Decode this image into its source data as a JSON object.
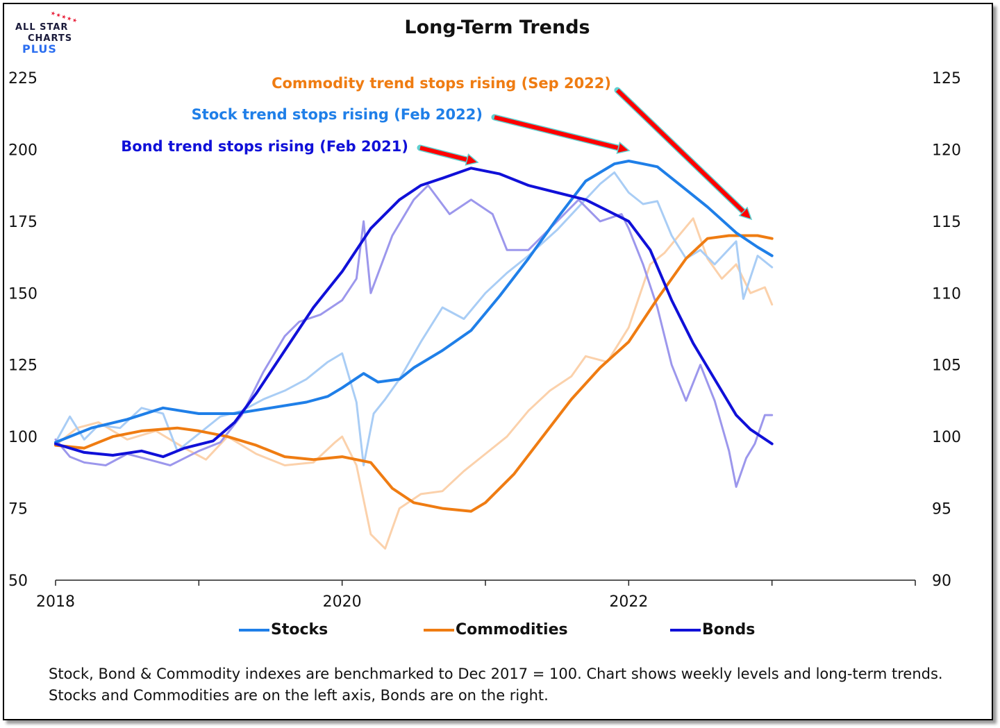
{
  "logo": {
    "line1": "ALL STAR",
    "line2": "CHARTS",
    "line3": "PLUS"
  },
  "colors": {
    "stocks": "#1f7fe8",
    "commodities": "#ef7c12",
    "bonds": "#1010d8",
    "stocks_weekly": "#a9cdf5",
    "commodities_weekly": "#fbd1ab",
    "bonds_weekly": "#9c97ec",
    "arrow": "#ff0000",
    "arrow_outline": "#5fd0d0"
  },
  "chart_data": {
    "type": "line",
    "title": "Long-Term Trends",
    "xlabel": "",
    "ylabel_left": "",
    "ylabel_right": "",
    "x_ticks": [
      "2018",
      "2020",
      "2022"
    ],
    "xlim": [
      2018.0,
      2024.0
    ],
    "ylim_left": [
      50,
      225
    ],
    "ylim_right": [
      90,
      125
    ],
    "y_ticks_left": [
      50,
      75,
      100,
      125,
      150,
      175,
      200,
      225
    ],
    "y_ticks_right": [
      90,
      95,
      100,
      105,
      110,
      115,
      120,
      125
    ],
    "grid": false,
    "legend_position": "bottom",
    "series": [
      {
        "name": "Stocks",
        "axis": "left",
        "kind": "trend",
        "x": [
          2018.0,
          2018.25,
          2018.5,
          2018.75,
          2019.0,
          2019.25,
          2019.5,
          2019.75,
          2019.9,
          2020.0,
          2020.15,
          2020.25,
          2020.4,
          2020.5,
          2020.7,
          2020.9,
          2021.1,
          2021.3,
          2021.5,
          2021.7,
          2021.9,
          2022.0,
          2022.1,
          2022.2,
          2022.4,
          2022.55,
          2022.75,
          2022.9,
          2023.0
        ],
        "y": [
          98,
          103,
          106,
          110,
          108,
          108,
          110,
          112,
          114,
          117,
          122,
          119,
          120,
          124,
          130,
          137,
          149,
          162,
          176,
          189,
          195,
          196,
          195,
          194,
          186,
          180,
          171,
          166,
          163
        ]
      },
      {
        "name": "",
        "axis": "left",
        "kind": "weekly",
        "x": [
          2018.0,
          2018.1,
          2018.2,
          2018.3,
          2018.45,
          2018.6,
          2018.75,
          2018.85,
          2019.0,
          2019.15,
          2019.3,
          2019.45,
          2019.6,
          2019.75,
          2019.9,
          2020.0,
          2020.1,
          2020.15,
          2020.22,
          2020.3,
          2020.4,
          2020.55,
          2020.7,
          2020.85,
          2021.0,
          2021.15,
          2021.3,
          2021.5,
          2021.65,
          2021.8,
          2021.9,
          2022.0,
          2022.1,
          2022.2,
          2022.3,
          2022.4,
          2022.5,
          2022.6,
          2022.75,
          2022.8,
          2022.9,
          2023.0
        ],
        "y": [
          98,
          107,
          99,
          104,
          103,
          110,
          108,
          95,
          101,
          107,
          109,
          113,
          116,
          120,
          126,
          129,
          112,
          90,
          108,
          113,
          120,
          133,
          145,
          141,
          150,
          157,
          163,
          172,
          180,
          188,
          192,
          185,
          181,
          182,
          170,
          162,
          165,
          160,
          168,
          148,
          163,
          159
        ]
      },
      {
        "name": "Commodities",
        "axis": "left",
        "kind": "trend",
        "x": [
          2018.0,
          2018.2,
          2018.4,
          2018.6,
          2018.85,
          2019.0,
          2019.2,
          2019.4,
          2019.6,
          2019.8,
          2020.0,
          2020.2,
          2020.35,
          2020.5,
          2020.7,
          2020.9,
          2021.0,
          2021.2,
          2021.4,
          2021.6,
          2021.8,
          2022.0,
          2022.2,
          2022.4,
          2022.55,
          2022.7,
          2022.8,
          2022.9,
          2023.0
        ],
        "y": [
          97,
          96,
          100,
          102,
          103,
          102,
          100,
          97,
          93,
          92,
          93,
          91,
          82,
          77,
          75,
          74,
          77,
          87,
          100,
          113,
          124,
          133,
          148,
          162,
          169,
          170,
          170,
          170,
          169
        ]
      },
      {
        "name": "",
        "axis": "left",
        "kind": "weekly",
        "x": [
          2018.0,
          2018.15,
          2018.3,
          2018.5,
          2018.7,
          2018.9,
          2019.05,
          2019.2,
          2019.4,
          2019.6,
          2019.8,
          2019.95,
          2020.0,
          2020.1,
          2020.2,
          2020.3,
          2020.4,
          2020.55,
          2020.7,
          2020.85,
          2021.0,
          2021.15,
          2021.3,
          2021.45,
          2021.6,
          2021.7,
          2021.85,
          2022.0,
          2022.15,
          2022.25,
          2022.35,
          2022.45,
          2022.55,
          2022.65,
          2022.75,
          2022.85,
          2022.95,
          2023.0
        ],
        "y": [
          97,
          103,
          105,
          99,
          102,
          96,
          92,
          100,
          94,
          90,
          91,
          98,
          100,
          90,
          66,
          61,
          75,
          80,
          81,
          88,
          94,
          100,
          109,
          116,
          121,
          128,
          126,
          138,
          160,
          164,
          170,
          176,
          162,
          155,
          160,
          150,
          152,
          146
        ]
      },
      {
        "name": "Bonds",
        "axis": "right",
        "kind": "trend",
        "x": [
          2018.0,
          2018.2,
          2018.4,
          2018.6,
          2018.75,
          2018.9,
          2019.1,
          2019.25,
          2019.4,
          2019.6,
          2019.8,
          2020.0,
          2020.2,
          2020.4,
          2020.55,
          2020.7,
          2020.9,
          2021.1,
          2021.3,
          2021.5,
          2021.7,
          2021.9,
          2022.0,
          2022.15,
          2022.3,
          2022.45,
          2022.6,
          2022.75,
          2022.85,
          2023.0
        ],
        "y": [
          99.5,
          98.9,
          98.7,
          99.0,
          98.6,
          99.2,
          99.7,
          101.0,
          103.0,
          106.0,
          109.0,
          111.5,
          114.5,
          116.5,
          117.5,
          118.0,
          118.7,
          118.3,
          117.5,
          117.0,
          116.5,
          115.5,
          115.0,
          113.0,
          109.5,
          106.5,
          104.0,
          101.5,
          100.5,
          99.5
        ]
      },
      {
        "name": "",
        "axis": "right",
        "kind": "weekly",
        "x": [
          2018.0,
          2018.1,
          2018.2,
          2018.35,
          2018.5,
          2018.65,
          2018.8,
          2019.0,
          2019.15,
          2019.3,
          2019.45,
          2019.6,
          2019.7,
          2019.85,
          2020.0,
          2020.1,
          2020.15,
          2020.2,
          2020.35,
          2020.5,
          2020.6,
          2020.75,
          2020.9,
          2021.05,
          2021.15,
          2021.3,
          2021.5,
          2021.65,
          2021.8,
          2021.95,
          2022.0,
          2022.1,
          2022.2,
          2022.3,
          2022.4,
          2022.5,
          2022.6,
          2022.7,
          2022.75,
          2022.82,
          2022.88,
          2022.95,
          2023.0
        ],
        "y": [
          99.8,
          98.6,
          98.2,
          98.0,
          98.8,
          98.4,
          98.0,
          99.0,
          99.6,
          101.5,
          104.5,
          107.0,
          108.0,
          108.5,
          109.5,
          111.0,
          115.0,
          110.0,
          114.0,
          116.5,
          117.5,
          115.5,
          116.5,
          115.5,
          113.0,
          113.0,
          115.0,
          116.5,
          115.0,
          115.5,
          114.5,
          112.0,
          109.0,
          105.0,
          102.5,
          105.0,
          102.5,
          99.0,
          96.5,
          98.5,
          99.5,
          101.5,
          101.5
        ]
      }
    ],
    "annotations": [
      {
        "text": "Bond trend stops rising (Feb 2021)",
        "color": "#1010d8"
      },
      {
        "text": "Stock trend stops rising (Feb 2022)",
        "color": "#1f7fe8"
      },
      {
        "text": "Commodity trend stops rising (Sep 2022)",
        "color": "#ef7c12"
      }
    ]
  },
  "legend": [
    {
      "label": "Stocks",
      "color": "#1f7fe8"
    },
    {
      "label": "Commodities",
      "color": "#ef7c12"
    },
    {
      "label": "Bonds",
      "color": "#1010d8"
    }
  ],
  "footnote": "Stock, Bond & Commodity indexes are benchmarked to Dec 2017 = 100. Chart shows weekly levels and long-term trends. Stocks and Commodities are on the left axis, Bonds are on the right."
}
